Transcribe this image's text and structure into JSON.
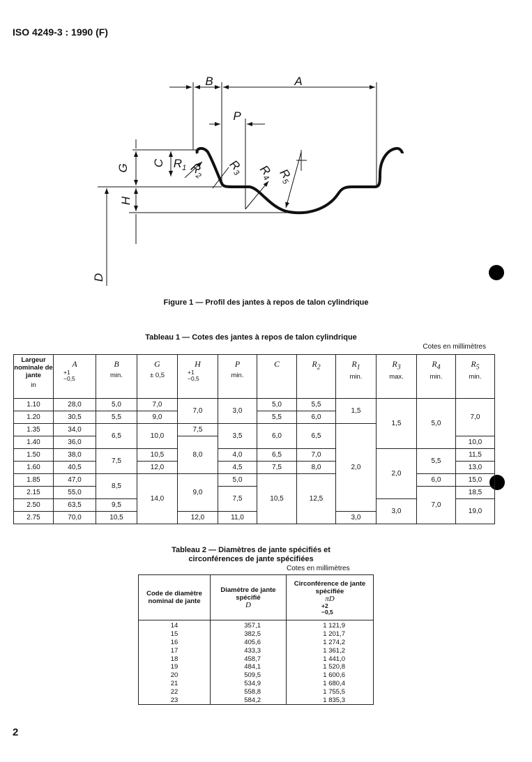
{
  "header": {
    "title": "ISO 4249-3 : 1990 (F)"
  },
  "figure": {
    "labels": [
      {
        "text": "B"
      },
      {
        "text": "A"
      },
      {
        "text": "P"
      },
      {
        "text": "G"
      },
      {
        "text": "C"
      },
      {
        "text": "R",
        "sub": "1"
      },
      {
        "text": "R",
        "sub": "2"
      },
      {
        "text": "R",
        "sub": "3"
      },
      {
        "text": "R",
        "sub": "4"
      },
      {
        "text": "R",
        "sub": "5"
      },
      {
        "text": "H"
      },
      {
        "text": "D"
      }
    ],
    "caption": "Figure 1 — Profil des jantes à repos de talon cylindrique"
  },
  "table1": {
    "title": "Tableau 1 — Cotes des jantes à repos de talon cylindrique",
    "unit": "Cotes en millimètres",
    "columns": [
      {
        "label": "Largeur nominale de jante",
        "unit": "in"
      },
      {
        "symbol": "A",
        "upper": "+1",
        "lower": "−0,5"
      },
      {
        "symbol": "B",
        "note": "min."
      },
      {
        "symbol": "G",
        "note": "± 0,5"
      },
      {
        "symbol": "H",
        "upper": "+1",
        "lower": "−0,5"
      },
      {
        "symbol": "P",
        "note": "min."
      },
      {
        "symbol": "C"
      },
      {
        "symbol": "R",
        "sub": "2"
      },
      {
        "symbol": "R",
        "sub": "1",
        "note": "min."
      },
      {
        "symbol": "R",
        "sub": "3",
        "note": "max."
      },
      {
        "symbol": "R",
        "sub": "4",
        "note": "min."
      },
      {
        "symbol": "R",
        "sub": "5",
        "note": "min."
      }
    ],
    "rows": [
      [
        "1.10",
        "28,0",
        "5,0",
        "7,0",
        "7,0",
        "3,0",
        "5,0",
        "5,5",
        "1,5",
        "1,5",
        "5,0",
        "7,0"
      ],
      [
        "1.20",
        "30,5",
        "5,5",
        "9,0",
        null,
        null,
        "5,5",
        "6,0",
        null,
        null,
        null,
        null
      ],
      [
        "1.35",
        "34,0",
        "6,5",
        "10,0",
        "7,5",
        "3,5",
        "6,0",
        "6,5",
        "2,0",
        null,
        null,
        null
      ],
      [
        "1.40",
        "36,0",
        null,
        null,
        "8,0",
        null,
        null,
        null,
        null,
        null,
        null,
        "10,0"
      ],
      [
        "1.50",
        "38,0",
        "7,5",
        "10,5",
        null,
        "4,0",
        "6,5",
        "7,0",
        null,
        "2,0",
        "5,5",
        "11,5"
      ],
      [
        "1.60",
        "40,5",
        null,
        "12,0",
        null,
        "4,5",
        "7,5",
        "8,0",
        null,
        null,
        null,
        "13,0"
      ],
      [
        "1.85",
        "47,0",
        "8,5",
        "14,0",
        "9,0",
        "5,0",
        "10,5",
        "12,5",
        null,
        null,
        "6,0",
        "15,0"
      ],
      [
        "2.15",
        "55,0",
        null,
        null,
        null,
        "7,5",
        null,
        null,
        null,
        null,
        "7,0",
        "18,5"
      ],
      [
        "2.50",
        "63,5",
        "9,5",
        null,
        null,
        null,
        null,
        null,
        null,
        "3,0",
        null,
        "19,0"
      ],
      [
        "2.75",
        "70,0",
        "10,5",
        null,
        "12,0",
        "11,0",
        null,
        null,
        "3,0",
        null,
        null,
        null
      ]
    ]
  },
  "table2": {
    "title": [
      "Tableau 2 — Diamètres de jante spécifiés et",
      "circonférences de jante spécifiées"
    ],
    "unit": "Cotes en millimètres",
    "columns": [
      {
        "label": "Code de diamètre nominal de jante"
      },
      {
        "label": "Diamètre de jante spécifié",
        "symbol": "D"
      },
      {
        "label": "Circonférence de jante spécifiée",
        "symbol": "πD",
        "upper": "+2",
        "lower": "−0,5"
      }
    ],
    "rows": [
      [
        "14",
        "357,1",
        "1 121,9"
      ],
      [
        "15",
        "382,5",
        "1 201,7"
      ],
      [
        "16",
        "405,6",
        "1 274,2"
      ],
      [
        "17",
        "433,3",
        "1 361,2"
      ],
      [
        "18",
        "458,7",
        "1 441,0"
      ],
      [
        "19",
        "484,1",
        "1 520,8"
      ],
      [
        "20",
        "509,5",
        "1 600,6"
      ],
      [
        "21",
        "534,9",
        "1 680,4"
      ],
      [
        "22",
        "558,8",
        "1 755,5"
      ],
      [
        "23",
        "584,2",
        "1 835,3"
      ]
    ]
  },
  "footer": {
    "page": "2"
  }
}
